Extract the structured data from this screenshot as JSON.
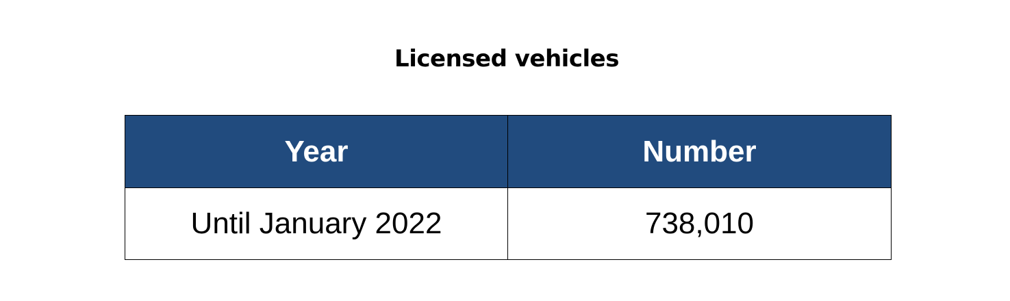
{
  "title": "Licensed vehicles",
  "table": {
    "headers": [
      "Year",
      "Number"
    ],
    "rows": [
      [
        "Until January 2022",
        "738,010"
      ]
    ]
  },
  "colors": {
    "header_background": "#214b7e",
    "header_text": "#ffffff",
    "border": "#000000"
  }
}
